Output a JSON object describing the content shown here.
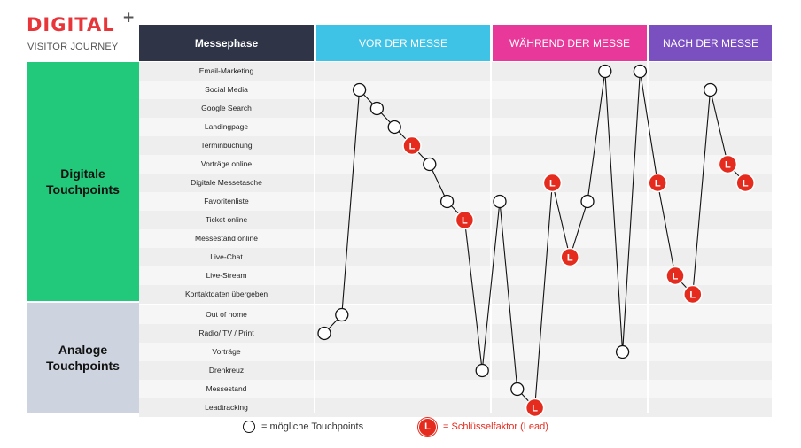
{
  "logo": {
    "title": "DIGITAL",
    "plus": "+",
    "subtitle": "VISITOR JOURNEY"
  },
  "header": {
    "phase_label": "Messephase",
    "phases": [
      "VOR DER MESSE",
      "WÄHREND DER MESSE",
      "NACH DER MESSE"
    ],
    "phase_colors": [
      "#3ec3e6",
      "#e8389a",
      "#7a4fc0"
    ]
  },
  "categories": {
    "digital": [
      "Digitale",
      "Touchpoints"
    ],
    "analog": [
      "Analoge",
      "Touchpoints"
    ]
  },
  "touchpoints": [
    "Email-Marketing",
    "Social Media",
    "Google Search",
    "Landingpage",
    "Terminbuchung",
    "Vorträge online",
    "Digitale Messetasche",
    "Favoritenliste",
    "Ticket online",
    "Messestand online",
    "Live-Chat",
    "Live-Stream",
    "Kontaktdaten übergeben",
    "Out of home",
    "Radio/ TV / Print",
    "Vorträge",
    "Drehkreuz",
    "Messestand",
    "Leadtracking"
  ],
  "journey": [
    {
      "step": 1,
      "touchpoint": "Radio/ TV / Print",
      "type": "possible"
    },
    {
      "step": 2,
      "touchpoint": "Out of home",
      "type": "possible"
    },
    {
      "step": 3,
      "touchpoint": "Social Media",
      "type": "possible"
    },
    {
      "step": 4,
      "touchpoint": "Google Search",
      "type": "possible"
    },
    {
      "step": 5,
      "touchpoint": "Landingpage",
      "type": "possible"
    },
    {
      "step": 6,
      "touchpoint": "Terminbuchung",
      "type": "lead"
    },
    {
      "step": 7,
      "touchpoint": "Vorträge online",
      "type": "possible"
    },
    {
      "step": 8,
      "touchpoint": "Favoritenliste",
      "type": "possible"
    },
    {
      "step": 9,
      "touchpoint": "Ticket online",
      "type": "lead"
    },
    {
      "step": 10,
      "touchpoint": "Drehkreuz",
      "type": "possible"
    },
    {
      "step": 11,
      "touchpoint": "Favoritenliste",
      "type": "possible"
    },
    {
      "step": 12,
      "touchpoint": "Messestand",
      "type": "possible"
    },
    {
      "step": 13,
      "touchpoint": "Leadtracking",
      "type": "lead"
    },
    {
      "step": 14,
      "touchpoint": "Digitale Messetasche",
      "type": "lead"
    },
    {
      "step": 15,
      "touchpoint": "Live-Chat",
      "type": "lead"
    },
    {
      "step": 16,
      "touchpoint": "Favoritenliste",
      "type": "possible"
    },
    {
      "step": 17,
      "touchpoint": "Email-Marketing",
      "type": "possible"
    },
    {
      "step": 18,
      "touchpoint": "Vorträge",
      "type": "possible"
    },
    {
      "step": 19,
      "touchpoint": "Email-Marketing",
      "type": "possible"
    },
    {
      "step": 20,
      "touchpoint": "Digitale Messetasche",
      "type": "lead"
    },
    {
      "step": 21,
      "touchpoint": "Live-Stream",
      "type": "lead"
    },
    {
      "step": 22,
      "touchpoint": "Kontaktdaten übergeben",
      "type": "lead"
    },
    {
      "step": 23,
      "touchpoint": "Social Media",
      "type": "possible"
    },
    {
      "step": 24,
      "touchpoint": "Vorträge online",
      "type": "lead"
    },
    {
      "step": 25,
      "touchpoint": "Digitale Messetasche",
      "type": "lead"
    }
  ],
  "lead_marker": "L",
  "colors": {
    "lead": "#e52b1e",
    "digital": "#22c97a",
    "analog": "#cdd4df",
    "header_dark": "#2f3447",
    "legend_lead_text": "#e52b1e"
  },
  "legend": {
    "possible_label": "= mögliche Touchpoints",
    "lead_label": "= Schlüsselfaktor (Lead)"
  }
}
